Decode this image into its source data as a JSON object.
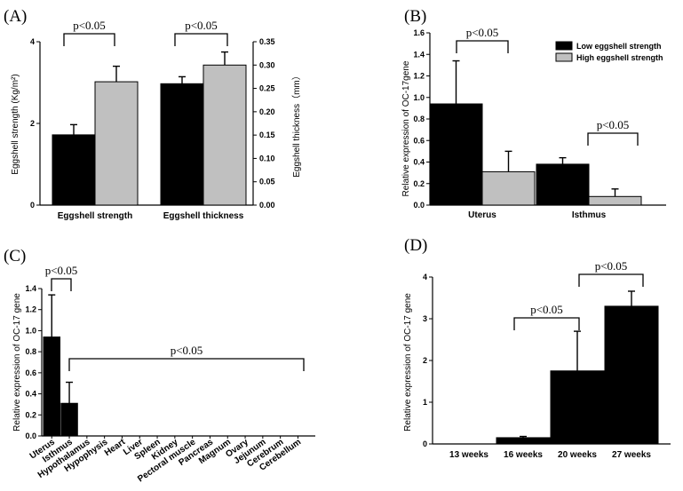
{
  "colors": {
    "low": "#000000",
    "high": "#c0c0c0",
    "single": "#000000"
  },
  "chart_data": [
    {
      "panel": "(A)",
      "type": "bar",
      "categories": [
        "Eggshell strength",
        "Eggshell thickness"
      ],
      "series": [
        {
          "values": [
            1.72,
            0.26
          ],
          "errors": [
            0.25,
            0.015
          ]
        },
        {
          "values": [
            3.02,
            0.3
          ],
          "errors": [
            0.38,
            0.028
          ]
        }
      ],
      "ylabel": "Eggshell strength (Kg/m²)",
      "ylim": [
        0,
        4
      ],
      "yticks": [
        "0",
        "2",
        "4"
      ],
      "y2label": "Eggshell thickness（mm）",
      "y2lim": [
        0,
        0.35
      ],
      "y2ticks": [
        "0.00",
        "0.05",
        "0.10",
        "0.15",
        "0.20",
        "0.25",
        "0.30",
        "0.35"
      ],
      "annotations": [
        "p<0.05",
        "p<0.05"
      ]
    },
    {
      "panel": "(B)",
      "type": "bar",
      "categories": [
        "Uterus",
        "Isthmus"
      ],
      "series": [
        {
          "name": "Low eggshell strength",
          "values": [
            0.94,
            0.38
          ],
          "errors": [
            0.4,
            0.06
          ]
        },
        {
          "name": "High eggshell strength",
          "values": [
            0.31,
            0.08
          ],
          "errors": [
            0.19,
            0.07
          ]
        }
      ],
      "ylabel": "Relative expression of OC-17gene",
      "ylim": [
        0,
        1.6
      ],
      "yticks": [
        "0.0",
        "0.2",
        "0.4",
        "0.6",
        "0.8",
        "1.0",
        "1.2",
        "1.4",
        "1.6"
      ],
      "legend_position": "top-right",
      "annotations": [
        "p<0.05",
        "p<0.05"
      ]
    },
    {
      "panel": "(C)",
      "type": "bar",
      "categories": [
        "Uterus",
        "Isthmus",
        "Hypothalamus",
        "Hypophysis",
        "Heart",
        "Liver",
        "Spleen",
        "Kidney",
        "Pectoral muscle",
        "Pancreas",
        "Magnum",
        "Ovary",
        "Jejunum",
        "Cerebrum",
        "Cerebellum"
      ],
      "values": [
        0.94,
        0.31,
        0,
        0,
        0,
        0,
        0,
        0,
        0,
        0,
        0,
        0,
        0,
        0,
        0
      ],
      "errors": [
        0.4,
        0.2,
        0,
        0,
        0,
        0,
        0,
        0,
        0,
        0,
        0,
        0,
        0,
        0,
        0
      ],
      "ylabel": "Relative expression of OC-17 gene",
      "ylim": [
        0,
        1.4
      ],
      "yticks": [
        "0.0",
        "0.2",
        "0.4",
        "0.6",
        "0.8",
        "1.0",
        "1.2",
        "1.4"
      ],
      "annotations": [
        "p<0.05",
        "p<0.05"
      ]
    },
    {
      "panel": "(D)",
      "type": "bar",
      "categories": [
        "13 weeks",
        "16 weeks",
        "20 weeks",
        "27 weeks"
      ],
      "values": [
        0.0,
        0.15,
        1.75,
        3.3
      ],
      "errors": [
        0.0,
        0.03,
        0.95,
        0.36
      ],
      "ylabel": "Relative expression of OC-17 gene",
      "ylim": [
        0,
        4
      ],
      "yticks": [
        "0",
        "1",
        "2",
        "3",
        "4"
      ],
      "annotations": [
        "p<0.05",
        "p<0.05"
      ]
    }
  ]
}
